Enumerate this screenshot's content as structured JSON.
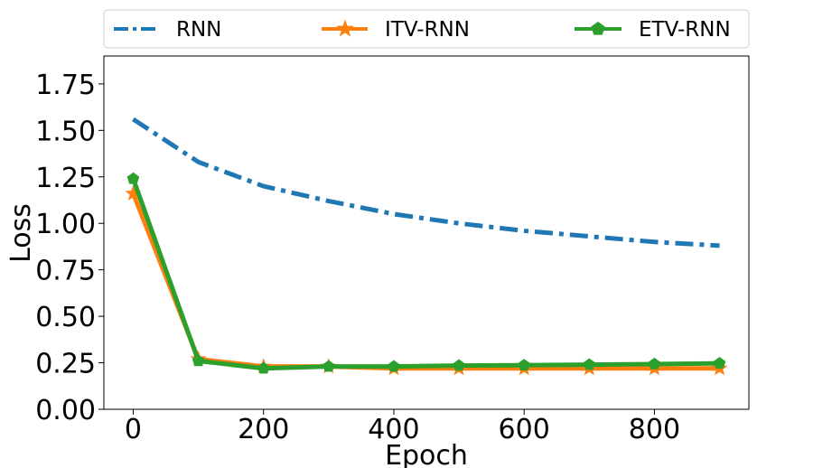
{
  "chart_data": {
    "type": "line",
    "xlabel": "Epoch",
    "ylabel": "Loss",
    "xlim": [
      -45,
      945
    ],
    "ylim": [
      0,
      1.9
    ],
    "xticks": [
      0,
      200,
      400,
      600,
      800
    ],
    "xtick_labels": [
      "0",
      "200",
      "400",
      "600",
      "800"
    ],
    "yticks": [
      0,
      0.25,
      0.5,
      0.75,
      1.0,
      1.25,
      1.5,
      1.75
    ],
    "ytick_labels": [
      "0.00",
      "0.25",
      "0.50",
      "0.75",
      "1.00",
      "1.25",
      "1.50",
      "1.75"
    ],
    "grid": false,
    "legend_position": "top, outside plot",
    "x": [
      0,
      100,
      200,
      300,
      400,
      500,
      600,
      700,
      800,
      900
    ],
    "series": [
      {
        "name": "RNN",
        "color": "#1f77b4",
        "linestyle": "dashdot",
        "marker": "none",
        "values": [
          1.56,
          1.33,
          1.2,
          1.12,
          1.05,
          1.0,
          0.96,
          0.93,
          0.9,
          0.88
        ]
      },
      {
        "name": "ITV-RNN",
        "color": "#ff7f0e",
        "linestyle": "solid",
        "marker": "star",
        "values": [
          1.16,
          0.27,
          0.23,
          0.23,
          0.22,
          0.22,
          0.22,
          0.22,
          0.22,
          0.22
        ]
      },
      {
        "name": "ETV-RNN",
        "color": "#2ca02c",
        "linestyle": "solid",
        "marker": "pentagon",
        "values": [
          1.24,
          0.26,
          0.22,
          0.23,
          0.23,
          0.235,
          0.237,
          0.24,
          0.243,
          0.247
        ]
      }
    ]
  }
}
